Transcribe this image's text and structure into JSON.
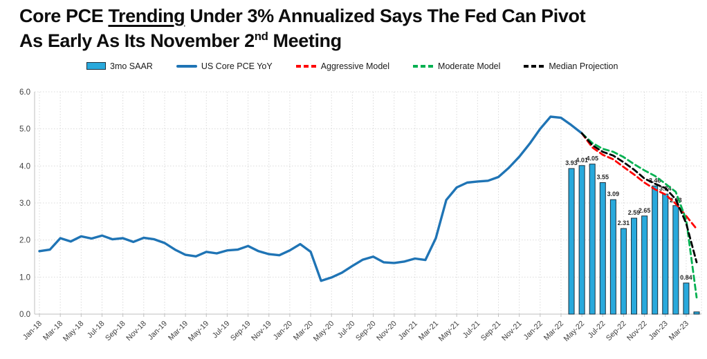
{
  "page": {
    "title": {
      "line1_pre": "Core PCE ",
      "line1_underlined": "Trending",
      "line1_post": " Under 3% Annualized Says The Fed Can Pivot",
      "line2_pre": "As Early As Its November 2",
      "line2_sup": "nd",
      "line2_post": " Meeting"
    }
  },
  "chart_data": {
    "type": "combo-bar-line",
    "title": "Core PCE Trending Under 3% Annualized Says The Fed Can Pivot As Early As Its November 2nd Meeting",
    "ylim": [
      0,
      6
    ],
    "y_tick_labels": [
      "0.0",
      "1.0",
      "2.0",
      "3.0",
      "4.0",
      "5.0",
      "6.0"
    ],
    "x_months_total": 64,
    "x_first_month": "Jan-18",
    "x_last_month": "Apr-23",
    "x_tick_every": 2,
    "x_tick_labels": [
      "Jan-18",
      "Mar-18",
      "May-18",
      "Jul-18",
      "Sep-18",
      "Nov-18",
      "Jan-19",
      "Mar-19",
      "May-19",
      "Jul-19",
      "Sep-19",
      "Nov-19",
      "Jan-20",
      "Mar-20",
      "May-20",
      "Jul-20",
      "Sep-20",
      "Nov-20",
      "Jan-21",
      "Mar-21",
      "May-21",
      "Jul-21",
      "Sep-21",
      "Nov-21",
      "Jan-22",
      "Mar-22",
      "May-22",
      "Jul-22",
      "Sep-22",
      "Nov-22",
      "Jan-23",
      "Mar-23"
    ],
    "grid": true,
    "legend_position": "top",
    "colors": {
      "bar_fill": "#29A9DC",
      "bar_border": "#1A2E3B",
      "line_blue": "#1F74B5",
      "aggressive_red": "#FF0000",
      "moderate_green": "#00B050",
      "median_black": "#000000",
      "gridline": "#D9D9D9",
      "axis": "#BFBFBF",
      "tick_text": "#404040",
      "bar_label_text": "#262626"
    },
    "series": [
      {
        "name": "3mo SAAR",
        "type": "bar",
        "color": "#29A9DC",
        "border": "#1A2E3B",
        "start_index": 51,
        "start_month": "Apr-22",
        "values": [
          3.93,
          4.01,
          4.05,
          3.55,
          3.09,
          2.31,
          2.59,
          2.65,
          3.46,
          3.24,
          2.93,
          0.84,
          0.06
        ],
        "labels": [
          "3.93",
          "4.01",
          "4.05",
          "3.55",
          "3.09",
          "2.31",
          "2.59",
          "2.65",
          "3.46",
          "3.24",
          "2.93",
          "0.84",
          ""
        ]
      },
      {
        "name": "US Core PCE YoY",
        "type": "line",
        "color": "#1F74B5",
        "start_index": 0,
        "start_month": "Jan-18",
        "values": [
          1.7,
          1.74,
          2.05,
          1.96,
          2.1,
          2.04,
          2.12,
          2.02,
          2.05,
          1.95,
          2.06,
          2.02,
          1.92,
          1.74,
          1.6,
          1.56,
          1.68,
          1.64,
          1.72,
          1.74,
          1.84,
          1.7,
          1.62,
          1.59,
          1.72,
          1.89,
          1.68,
          0.9,
          0.99,
          1.12,
          1.3,
          1.47,
          1.55,
          1.4,
          1.38,
          1.42,
          1.5,
          1.46,
          2.05,
          3.08,
          3.42,
          3.55,
          3.58,
          3.6,
          3.7,
          3.95,
          4.25,
          4.6,
          5.0,
          5.33,
          5.3,
          5.1,
          4.88
        ]
      },
      {
        "name": "Aggressive Model",
        "type": "dashed-line",
        "color": "#FF0000",
        "start_index": 52,
        "start_month": "May-22",
        "values": [
          4.88,
          4.5,
          4.3,
          4.18,
          3.97,
          3.77,
          3.55,
          3.37,
          3.23,
          2.98,
          2.65,
          2.3
        ]
      },
      {
        "name": "Moderate Model",
        "type": "dashed-line",
        "color": "#00B050",
        "start_index": 52,
        "start_month": "May-22",
        "values": [
          4.88,
          4.62,
          4.46,
          4.38,
          4.24,
          4.05,
          3.88,
          3.73,
          3.52,
          3.3,
          2.55,
          0.45
        ]
      },
      {
        "name": "Median Projection",
        "type": "dashed-line",
        "color": "#000000",
        "start_index": 52,
        "start_month": "May-22",
        "values": [
          4.88,
          4.56,
          4.38,
          4.28,
          4.1,
          3.9,
          3.66,
          3.52,
          3.4,
          3.1,
          2.45,
          1.4
        ]
      }
    ]
  }
}
